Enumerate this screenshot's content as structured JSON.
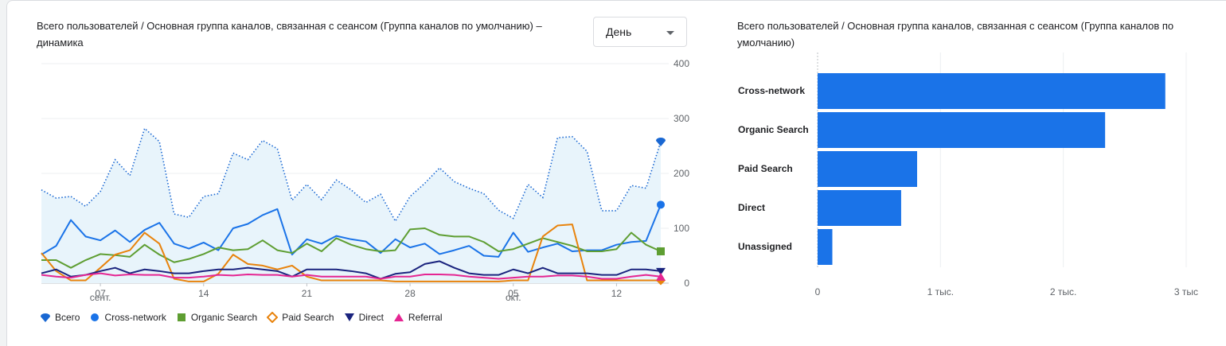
{
  "line_panel": {
    "title": "Всего пользователей / Основная группа каналов, связанная с сеансом (Группа каналов по умолчанию) – динамика",
    "period_selector": "День"
  },
  "bar_panel": {
    "title": "Всего пользователей / Основная группа каналов, связанная с сеансом (Группа каналов по умолчанию)"
  },
  "colors": {
    "total": "#1967d2",
    "total_fill": "#e8f4fb",
    "cross_network": "#1a73e8",
    "organic_search": "#5e9e32",
    "paid_search": "#e8830c",
    "direct": "#1a237e",
    "referral": "#e52592",
    "bar": "#1a73e8"
  },
  "chart_data": [
    {
      "type": "line",
      "ylim": [
        0,
        400
      ],
      "yticks": [
        "400",
        "300",
        "200",
        "100",
        "0"
      ],
      "ytick_values": [
        400,
        300,
        200,
        100,
        0
      ],
      "xticks": [
        {
          "day": 4,
          "label": "07",
          "sub": "сент."
        },
        {
          "day": 11,
          "label": "14",
          "sub": ""
        },
        {
          "day": 18,
          "label": "21",
          "sub": ""
        },
        {
          "day": 25,
          "label": "28",
          "sub": ""
        },
        {
          "day": 32,
          "label": "05",
          "sub": "окт."
        },
        {
          "day": 39,
          "label": "12",
          "sub": ""
        }
      ],
      "series": [
        {
          "name": "Всего",
          "key": "total",
          "values": [
            170,
            155,
            158,
            140,
            167,
            225,
            196,
            282,
            258,
            126,
            120,
            158,
            163,
            237,
            225,
            260,
            245,
            151,
            180,
            152,
            188,
            170,
            147,
            162,
            113,
            158,
            182,
            210,
            185,
            173,
            163,
            133,
            118,
            180,
            156,
            265,
            267,
            240,
            132,
            132,
            178,
            173,
            258
          ]
        },
        {
          "name": "Cross-network",
          "key": "cross_network",
          "values": [
            52,
            68,
            115,
            85,
            78,
            96,
            75,
            97,
            110,
            72,
            63,
            74,
            60,
            100,
            108,
            124,
            135,
            52,
            80,
            72,
            86,
            80,
            76,
            55,
            80,
            65,
            72,
            53,
            60,
            68,
            50,
            48,
            92,
            57,
            65,
            72,
            58,
            60,
            60,
            70,
            75,
            77,
            143
          ]
        },
        {
          "name": "Organic Search",
          "key": "organic_search",
          "values": [
            42,
            42,
            28,
            42,
            53,
            51,
            48,
            70,
            52,
            38,
            44,
            53,
            65,
            60,
            62,
            78,
            60,
            55,
            72,
            58,
            82,
            70,
            62,
            58,
            60,
            98,
            100,
            88,
            85,
            85,
            75,
            58,
            62,
            72,
            82,
            75,
            68,
            58,
            58,
            62,
            92,
            70,
            58
          ]
        },
        {
          "name": "Paid Search",
          "key": "paid_search",
          "values": [
            55,
            22,
            5,
            5,
            28,
            52,
            60,
            92,
            72,
            8,
            3,
            3,
            17,
            52,
            35,
            32,
            25,
            32,
            12,
            5,
            5,
            5,
            5,
            5,
            3,
            3,
            3,
            3,
            3,
            3,
            3,
            3,
            5,
            5,
            85,
            105,
            107,
            5,
            5,
            5,
            5,
            5,
            5
          ]
        },
        {
          "name": "Direct",
          "key": "direct",
          "values": [
            18,
            25,
            12,
            15,
            22,
            28,
            18,
            25,
            22,
            18,
            18,
            22,
            25,
            25,
            28,
            25,
            22,
            12,
            25,
            25,
            25,
            22,
            18,
            8,
            17,
            20,
            35,
            40,
            28,
            18,
            15,
            15,
            25,
            18,
            28,
            18,
            18,
            18,
            15,
            15,
            25,
            25,
            22
          ]
        },
        {
          "name": "Referral",
          "key": "referral",
          "values": [
            15,
            12,
            10,
            15,
            18,
            14,
            16,
            15,
            15,
            10,
            10,
            12,
            15,
            14,
            16,
            15,
            15,
            12,
            15,
            12,
            12,
            12,
            12,
            8,
            12,
            12,
            16,
            16,
            15,
            12,
            10,
            8,
            10,
            12,
            12,
            14,
            14,
            12,
            8,
            8,
            12,
            15,
            12
          ]
        }
      ]
    },
    {
      "type": "bar",
      "orientation": "horizontal",
      "categories": [
        "Cross-network",
        "Organic Search",
        "Paid Search",
        "Direct",
        "Unassigned"
      ],
      "values": [
        2830,
        2340,
        810,
        680,
        120
      ],
      "xlim": [
        0,
        3000
      ],
      "xticks": [
        "0",
        "1 тыс.",
        "2 тыс.",
        "3 тыс"
      ],
      "xtick_values": [
        0,
        1000,
        2000,
        3000
      ]
    }
  ]
}
